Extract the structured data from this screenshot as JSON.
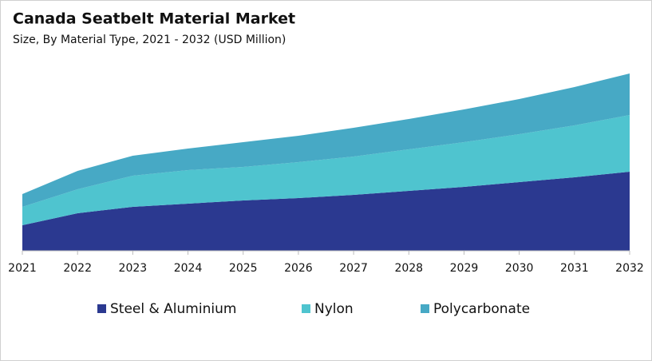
{
  "chart_data": {
    "type": "stacked-area",
    "title": "Canada Seatbelt Material Market",
    "subtitle": "Size, By Material Type, 2021 - 2032 (USD Million)",
    "x": [
      2021,
      2022,
      2023,
      2024,
      2025,
      2026,
      2027,
      2028,
      2029,
      2030,
      2031,
      2032
    ],
    "series": [
      {
        "name": "Steel & Aluminium",
        "color": "#2b3990",
        "values": [
          32,
          47,
          55,
          59,
          63,
          66,
          70,
          75,
          80,
          86,
          92,
          99
        ]
      },
      {
        "name": "Nylon",
        "color": "#4fc4cf",
        "values": [
          23,
          30,
          39,
          42,
          42,
          45,
          48,
          52,
          56,
          60,
          65,
          71
        ]
      },
      {
        "name": "Polycarbonate",
        "color": "#47a9c5",
        "values": [
          16,
          23,
          25,
          27,
          31,
          33,
          36,
          38,
          41,
          44,
          48,
          52
        ]
      }
    ]
  }
}
